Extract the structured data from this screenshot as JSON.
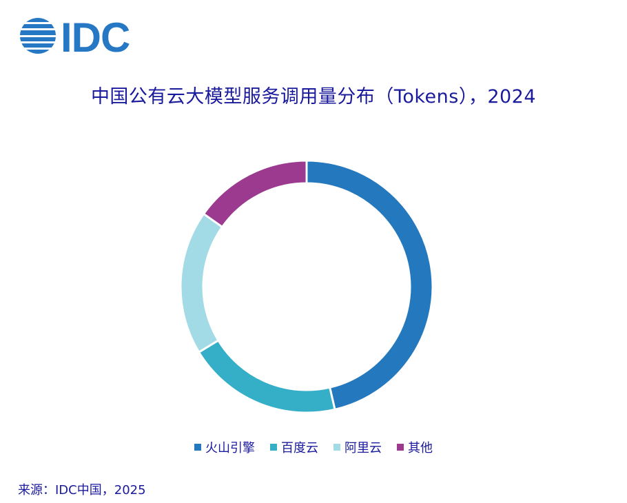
{
  "logo": {
    "text": "IDC",
    "color": "#2778c4"
  },
  "title": "中国公有云大模型服务调用量分布（Tokens），2024",
  "source": "来源：IDC中国，2025",
  "chart_data": {
    "type": "pie",
    "title": "中国公有云大模型服务调用量分布（Tokens），2024",
    "donut": true,
    "start_angle_deg": 0,
    "direction": "clockwise",
    "legend_position": "bottom",
    "categories": [
      "火山引擎",
      "百度云",
      "阿里云",
      "其他"
    ],
    "values": [
      46.4,
      19.9,
      18.5,
      15.2
    ],
    "colors": [
      "#2378be",
      "#35aec8",
      "#a2dbe6",
      "#9b3a8e"
    ]
  }
}
